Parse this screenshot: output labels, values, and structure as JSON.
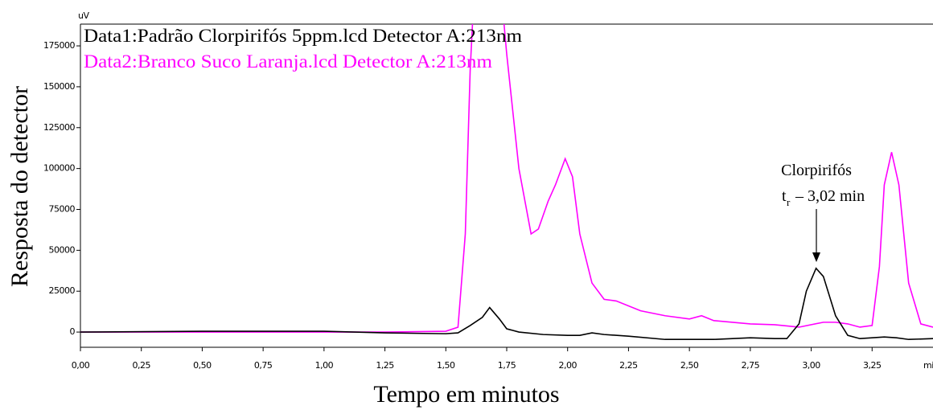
{
  "chart_data": {
    "type": "line",
    "y_unit": "uV",
    "x_unit": "min",
    "ylabel": "Resposta  do detector",
    "xlabel": "Tempo em minutos",
    "xlim": [
      0,
      3.5
    ],
    "ylim": [
      -9300,
      188300
    ],
    "xticks": [
      {
        "value": 0,
        "label": "0,00"
      },
      {
        "value": 0.25,
        "label": "0,25"
      },
      {
        "value": 0.5,
        "label": "0,50"
      },
      {
        "value": 0.75,
        "label": "0,75"
      },
      {
        "value": 1,
        "label": "1,00"
      },
      {
        "value": 1.25,
        "label": "1,25"
      },
      {
        "value": 1.5,
        "label": "1,50"
      },
      {
        "value": 1.75,
        "label": "1,75"
      },
      {
        "value": 2,
        "label": "2,00"
      },
      {
        "value": 2.25,
        "label": "2,25"
      },
      {
        "value": 2.5,
        "label": "2,50"
      },
      {
        "value": 2.75,
        "label": "2,75"
      },
      {
        "value": 3,
        "label": "3,00"
      },
      {
        "value": 3.25,
        "label": "3,25"
      }
    ],
    "yticks": [
      0,
      25000,
      50000,
      75000,
      100000,
      125000,
      150000,
      175000
    ],
    "annotation": {
      "title": "Clorpirifós",
      "symbol": "t",
      "subscript": "r",
      "text": "– 3,02 min"
    },
    "series": [
      {
        "name": "Data1:Padrão Clorpirifós 5ppm.lcd Detector A:213nm",
        "color": "#000000",
        "x": [
          0,
          0.5,
          1.0,
          1.25,
          1.5,
          1.55,
          1.6,
          1.65,
          1.68,
          1.72,
          1.75,
          1.8,
          1.9,
          2.0,
          2.05,
          2.1,
          2.15,
          2.25,
          2.4,
          2.5,
          2.6,
          2.75,
          2.85,
          2.9,
          2.95,
          2.98,
          3.02,
          3.05,
          3.1,
          3.15,
          3.2,
          3.3,
          3.35,
          3.4,
          3.5
        ],
        "values": [
          0,
          500,
          500,
          -500,
          -1000,
          -500,
          4000,
          9000,
          15000,
          8000,
          2000,
          0,
          -1500,
          -2000,
          -2000,
          -500,
          -1500,
          -2500,
          -4500,
          -4500,
          -4500,
          -3500,
          -4000,
          -4000,
          5000,
          25000,
          39000,
          34000,
          10000,
          -2000,
          -4000,
          -3000,
          -3500,
          -4500,
          -4000
        ]
      },
      {
        "name": "Data2:Branco Suco Laranja.lcd Detector A:213nm",
        "color": "#ff00ff",
        "x": [
          0,
          0.5,
          1.25,
          1.5,
          1.55,
          1.58,
          1.6,
          1.62,
          1.72,
          1.75,
          1.8,
          1.85,
          1.88,
          1.92,
          1.95,
          1.99,
          2.02,
          2.05,
          2.1,
          2.15,
          2.2,
          2.3,
          2.4,
          2.5,
          2.55,
          2.6,
          2.75,
          2.85,
          2.95,
          3.05,
          3.1,
          3.15,
          3.2,
          3.25,
          3.28,
          3.3,
          3.33,
          3.36,
          3.4,
          3.45,
          3.5
        ],
        "values": [
          0,
          0,
          0,
          500,
          3000,
          60000,
          160000,
          220000,
          220000,
          170000,
          100000,
          60000,
          63000,
          80000,
          90000,
          106000,
          95000,
          60000,
          30000,
          20000,
          19000,
          13000,
          10000,
          8000,
          10000,
          7000,
          5000,
          4500,
          3000,
          6000,
          6000,
          5000,
          3000,
          4000,
          40000,
          90000,
          110000,
          90000,
          30000,
          5000,
          3000
        ]
      }
    ]
  }
}
